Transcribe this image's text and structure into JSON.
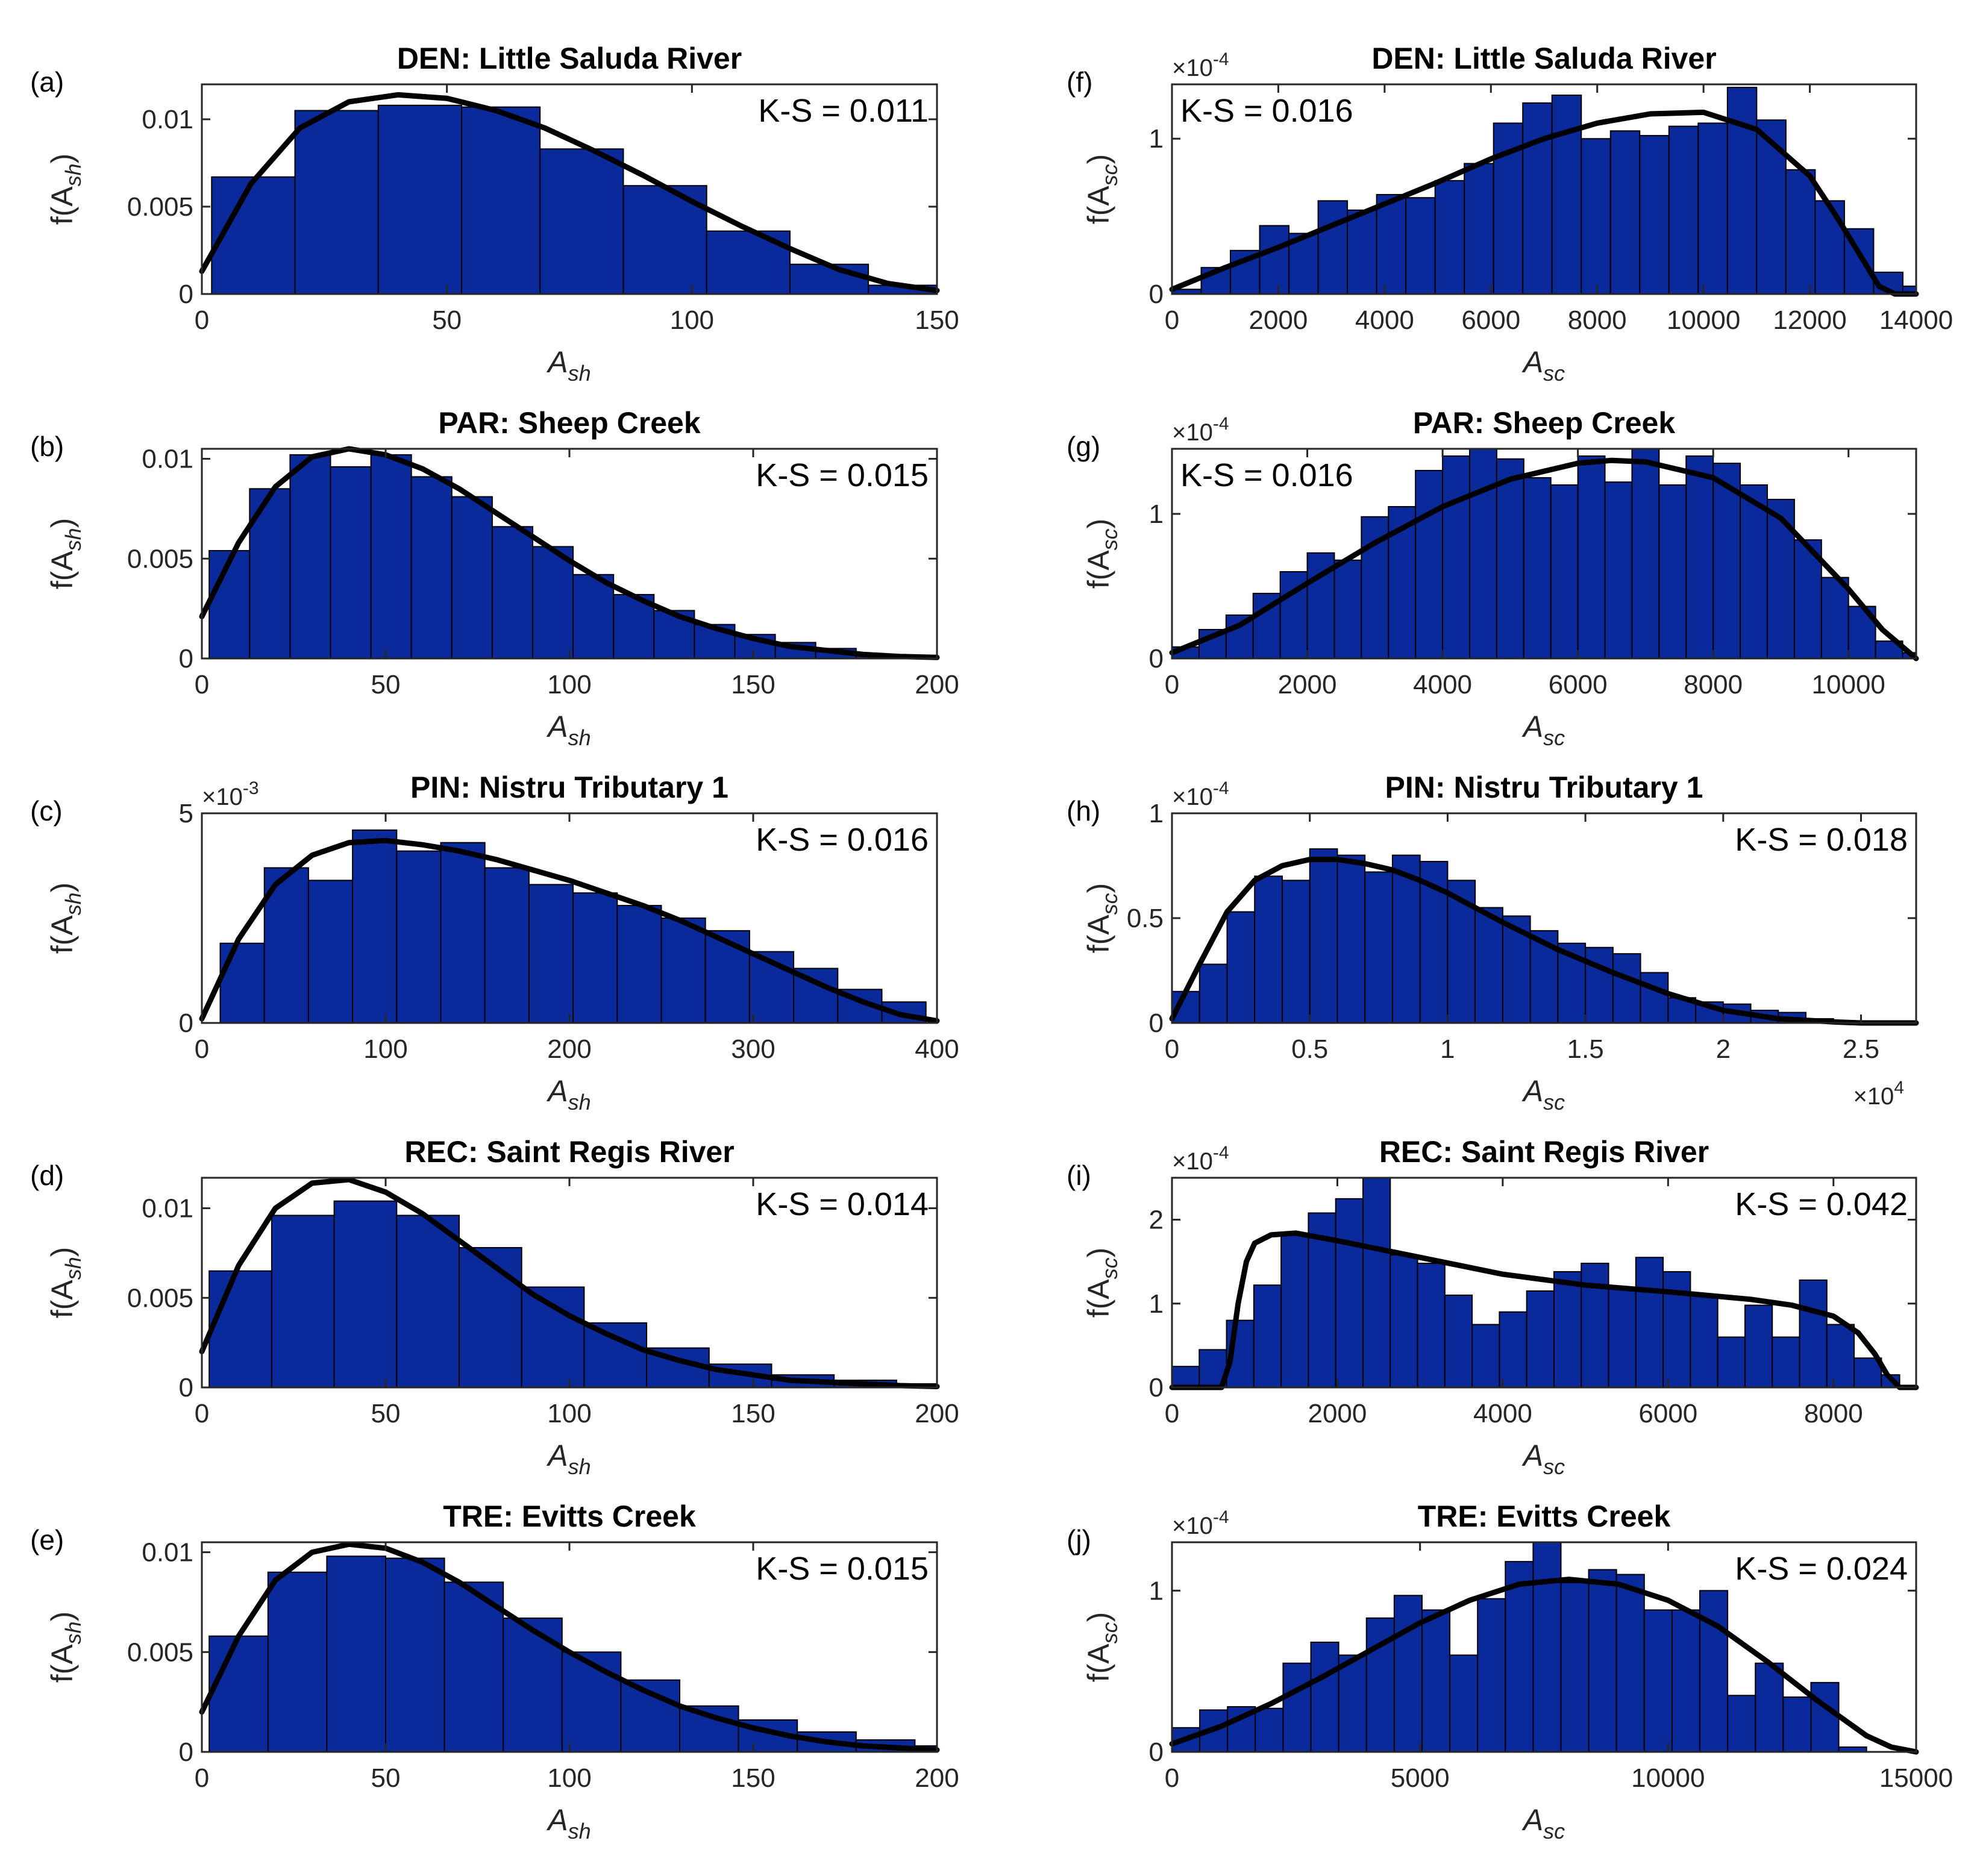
{
  "figure": {
    "style": {
      "bar_color": "#0a2a9c",
      "bar_edge": "#000000",
      "curve_color": "#000000"
    }
  },
  "chart_data": [
    {
      "id": "a",
      "type": "bar",
      "panel_label": "(a)",
      "title": "DEN: Little Saluda River",
      "ks": "K-S = 0.011",
      "xlabel": "A",
      "xlabel_sub": "sh",
      "ylabel_pre": "f(A",
      "ylabel_sub": "sh",
      "ylabel_post": ")",
      "xlim": [
        0,
        150
      ],
      "ylim": [
        0,
        0.012
      ],
      "xticks": [
        0,
        50,
        100,
        150
      ],
      "xticklabels": [
        "0",
        "50",
        "100",
        "150"
      ],
      "yticks": [
        0,
        0.005,
        0.01
      ],
      "yticklabels": [
        "0",
        "0.005",
        "0.01"
      ],
      "y_multiplier": null,
      "x_multiplier": null,
      "bin_edges": [
        2,
        19,
        36,
        53,
        69,
        86,
        103,
        120,
        136,
        150
      ],
      "values": [
        0.0067,
        0.0105,
        0.0108,
        0.0107,
        0.0083,
        0.0062,
        0.0036,
        0.0017,
        0.0005
      ],
      "fit_x": [
        0,
        10,
        20,
        30,
        40,
        50,
        60,
        70,
        80,
        90,
        100,
        110,
        120,
        130,
        140,
        150
      ],
      "fit_y": [
        0.0013,
        0.0063,
        0.0095,
        0.011,
        0.0114,
        0.0112,
        0.0105,
        0.0095,
        0.0082,
        0.0068,
        0.0053,
        0.0039,
        0.0026,
        0.0014,
        0.0006,
        0.0002
      ]
    },
    {
      "id": "b",
      "type": "bar",
      "panel_label": "(b)",
      "title": "PAR: Sheep Creek",
      "ks": "K-S = 0.015",
      "xlabel": "A",
      "xlabel_sub": "sh",
      "ylabel_pre": "f(A",
      "ylabel_sub": "sh",
      "ylabel_post": ")",
      "xlim": [
        0,
        200
      ],
      "ylim": [
        0,
        0.0105
      ],
      "xticks": [
        0,
        50,
        100,
        150,
        200
      ],
      "xticklabels": [
        "0",
        "50",
        "100",
        "150",
        "200"
      ],
      "yticks": [
        0,
        0.005,
        0.01
      ],
      "yticklabels": [
        "0",
        "0.005",
        "0.01"
      ],
      "y_multiplier": null,
      "x_multiplier": null,
      "bin_edges": [
        2,
        13,
        24,
        35,
        46,
        57,
        68,
        79,
        90,
        101,
        112,
        123,
        134,
        145,
        156,
        167,
        178,
        189,
        200
      ],
      "values": [
        0.0054,
        0.0085,
        0.0102,
        0.0096,
        0.0102,
        0.0091,
        0.0081,
        0.0066,
        0.0056,
        0.0042,
        0.0032,
        0.0024,
        0.0017,
        0.0012,
        0.0008,
        0.0005,
        0.0002,
        0.0001
      ],
      "fit_x": [
        0,
        10,
        20,
        30,
        40,
        50,
        60,
        70,
        80,
        90,
        100,
        110,
        120,
        130,
        140,
        150,
        160,
        170,
        180,
        190,
        200
      ],
      "fit_y": [
        0.0021,
        0.0058,
        0.0086,
        0.0101,
        0.0105,
        0.0102,
        0.0095,
        0.0085,
        0.0073,
        0.0061,
        0.0049,
        0.0038,
        0.0029,
        0.0021,
        0.0015,
        0.001,
        0.0006,
        0.0004,
        0.0002,
        0.0001,
        5e-05
      ]
    },
    {
      "id": "c",
      "type": "bar",
      "panel_label": "(c)",
      "title": "PIN: Nistru Tributary 1",
      "ks": "K-S = 0.016",
      "xlabel": "A",
      "xlabel_sub": "sh",
      "ylabel_pre": "f(A",
      "ylabel_sub": "sh",
      "ylabel_post": ")",
      "xlim": [
        0,
        400
      ],
      "ylim": [
        0,
        5
      ],
      "xticks": [
        0,
        100,
        200,
        300,
        400
      ],
      "xticklabels": [
        "0",
        "100",
        "200",
        "300",
        "400"
      ],
      "yticks": [
        0,
        5
      ],
      "yticklabels": [
        "0",
        "5"
      ],
      "y_multiplier": {
        "base": "×10",
        "exp": "-3"
      },
      "x_multiplier": null,
      "bin_edges": [
        10,
        34,
        58,
        82,
        106,
        130,
        154,
        178,
        202,
        226,
        250,
        274,
        298,
        322,
        346,
        370,
        394
      ],
      "values": [
        1.9,
        3.7,
        3.4,
        4.6,
        4.1,
        4.3,
        3.7,
        3.3,
        3.1,
        2.8,
        2.5,
        2.2,
        1.7,
        1.3,
        0.8,
        0.5,
        0.15
      ],
      "fit_x": [
        0,
        20,
        40,
        60,
        80,
        100,
        120,
        140,
        160,
        180,
        200,
        220,
        240,
        260,
        280,
        300,
        320,
        340,
        360,
        380,
        400
      ],
      "fit_y": [
        0.1,
        2.0,
        3.3,
        4.0,
        4.3,
        4.35,
        4.25,
        4.1,
        3.9,
        3.65,
        3.4,
        3.1,
        2.8,
        2.45,
        2.05,
        1.65,
        1.25,
        0.85,
        0.5,
        0.2,
        0.05
      ]
    },
    {
      "id": "d",
      "type": "bar",
      "panel_label": "(d)",
      "title": "REC: Saint Regis River",
      "ks": "K-S = 0.014",
      "xlabel": "A",
      "xlabel_sub": "sh",
      "ylabel_pre": "f(A",
      "ylabel_sub": "sh",
      "ylabel_post": ")",
      "xlim": [
        0,
        200
      ],
      "ylim": [
        0,
        0.0117
      ],
      "xticks": [
        0,
        50,
        100,
        150,
        200
      ],
      "xticklabels": [
        "0",
        "50",
        "100",
        "150",
        "200"
      ],
      "yticks": [
        0,
        0.005,
        0.01
      ],
      "yticklabels": [
        "0",
        "0.005",
        "0.01"
      ],
      "y_multiplier": null,
      "x_multiplier": null,
      "bin_edges": [
        2,
        19,
        36,
        53,
        70,
        87,
        104,
        121,
        138,
        155,
        172,
        189,
        200
      ],
      "values": [
        0.0065,
        0.0096,
        0.0104,
        0.0096,
        0.0078,
        0.0056,
        0.0036,
        0.0022,
        0.0013,
        0.0007,
        0.0004,
        0.0002
      ],
      "fit_x": [
        0,
        10,
        20,
        30,
        40,
        50,
        60,
        70,
        80,
        90,
        100,
        110,
        120,
        130,
        140,
        150,
        160,
        170,
        180,
        190,
        200
      ],
      "fit_y": [
        0.002,
        0.0068,
        0.01,
        0.0114,
        0.0116,
        0.0109,
        0.0097,
        0.0082,
        0.0067,
        0.0052,
        0.004,
        0.003,
        0.0021,
        0.0015,
        0.001,
        0.0007,
        0.0004,
        0.0003,
        0.0002,
        0.0001,
        5e-05
      ]
    },
    {
      "id": "e",
      "type": "bar",
      "panel_label": "(e)",
      "title": "TRE: Evitts Creek",
      "ks": "K-S = 0.015",
      "xlabel": "A",
      "xlabel_sub": "sh",
      "ylabel_pre": "f(A",
      "ylabel_sub": "sh",
      "ylabel_post": ")",
      "xlim": [
        0,
        200
      ],
      "ylim": [
        0,
        0.0105
      ],
      "xticks": [
        0,
        50,
        100,
        150,
        200
      ],
      "xticklabels": [
        "0",
        "50",
        "100",
        "150",
        "200"
      ],
      "yticks": [
        0,
        0.005,
        0.01
      ],
      "yticklabels": [
        "0",
        "0.005",
        "0.01"
      ],
      "y_multiplier": null,
      "x_multiplier": null,
      "bin_edges": [
        2,
        18,
        34,
        50,
        66,
        82,
        98,
        114,
        130,
        146,
        162,
        178,
        194,
        200
      ],
      "values": [
        0.0058,
        0.009,
        0.0098,
        0.0097,
        0.0085,
        0.0067,
        0.005,
        0.0036,
        0.0023,
        0.0016,
        0.001,
        0.0006,
        0.0003
      ],
      "fit_x": [
        0,
        10,
        20,
        30,
        40,
        50,
        60,
        70,
        80,
        90,
        100,
        110,
        120,
        130,
        140,
        150,
        160,
        170,
        180,
        190,
        200
      ],
      "fit_y": [
        0.002,
        0.0058,
        0.0086,
        0.01,
        0.0104,
        0.0102,
        0.0095,
        0.0085,
        0.0073,
        0.0061,
        0.005,
        0.004,
        0.0031,
        0.0023,
        0.0017,
        0.0012,
        0.0008,
        0.0005,
        0.0003,
        0.0002,
        0.0001
      ]
    },
    {
      "id": "f",
      "type": "bar",
      "panel_label": "(f)",
      "title": "DEN: Little Saluda River",
      "ks": "K-S = 0.016",
      "xlabel": "A",
      "xlabel_sub": "sc",
      "ylabel_pre": "f(A",
      "ylabel_sub": "sc",
      "ylabel_post": ")",
      "xlim": [
        0,
        14000
      ],
      "ylim": [
        0,
        1.35
      ],
      "xticks": [
        0,
        2000,
        4000,
        6000,
        8000,
        10000,
        12000,
        14000
      ],
      "xticklabels": [
        "0",
        "2000",
        "4000",
        "6000",
        "8000",
        "10000",
        "12000",
        "14000"
      ],
      "yticks": [
        0,
        1
      ],
      "yticklabels": [
        "0",
        "1"
      ],
      "y_multiplier": {
        "base": "×10",
        "exp": "-4"
      },
      "x_multiplier": null,
      "bin_edges": [
        0,
        550,
        1100,
        1650,
        2200,
        2750,
        3300,
        3850,
        4400,
        4950,
        5500,
        6050,
        6600,
        7150,
        7700,
        8250,
        8800,
        9350,
        9900,
        10450,
        11000,
        11550,
        12100,
        12650,
        13200,
        13750,
        14000
      ],
      "values": [
        0.03,
        0.17,
        0.28,
        0.44,
        0.39,
        0.6,
        0.54,
        0.64,
        0.62,
        0.73,
        0.84,
        1.1,
        1.23,
        1.28,
        1.0,
        1.05,
        1.02,
        1.08,
        1.1,
        1.33,
        1.12,
        0.8,
        0.6,
        0.42,
        0.14,
        0.05
      ],
      "fit_x": [
        0,
        1000,
        2000,
        3000,
        4000,
        5000,
        6000,
        7000,
        8000,
        9000,
        10000,
        11000,
        12000,
        12500,
        13000,
        13300,
        13600,
        14000
      ],
      "fit_y": [
        0.03,
        0.17,
        0.3,
        0.44,
        0.58,
        0.72,
        0.87,
        1.0,
        1.1,
        1.16,
        1.17,
        1.06,
        0.76,
        0.5,
        0.22,
        0.05,
        0.0,
        0.0
      ]
    },
    {
      "id": "g",
      "type": "bar",
      "panel_label": "(g)",
      "title": "PAR: Sheep Creek",
      "ks": "K-S = 0.016",
      "xlabel": "A",
      "xlabel_sub": "sc",
      "ylabel_pre": "f(A",
      "ylabel_sub": "sc",
      "ylabel_post": ")",
      "xlim": [
        0,
        11000
      ],
      "ylim": [
        0,
        1.45
      ],
      "xticks": [
        0,
        2000,
        4000,
        6000,
        8000,
        10000
      ],
      "xticklabels": [
        "0",
        "2000",
        "4000",
        "6000",
        "8000",
        "10000"
      ],
      "yticks": [
        0,
        1
      ],
      "yticklabels": [
        "0",
        "1"
      ],
      "y_multiplier": {
        "base": "×10",
        "exp": "-4"
      },
      "x_multiplier": null,
      "bin_edges": [
        0,
        400,
        800,
        1200,
        1600,
        2000,
        2400,
        2800,
        3200,
        3600,
        4000,
        4400,
        4800,
        5200,
        5600,
        6000,
        6400,
        6800,
        7200,
        7600,
        8000,
        8400,
        8800,
        9200,
        9600,
        10000,
        10400,
        10800,
        11000
      ],
      "values": [
        0.08,
        0.2,
        0.3,
        0.45,
        0.6,
        0.73,
        0.68,
        0.98,
        1.05,
        1.3,
        1.4,
        1.45,
        1.38,
        1.25,
        1.2,
        1.4,
        1.22,
        1.45,
        1.2,
        1.4,
        1.35,
        1.2,
        1.1,
        0.82,
        0.56,
        0.36,
        0.12,
        0.04
      ],
      "fit_x": [
        0,
        1000,
        2000,
        3000,
        4000,
        5000,
        6000,
        6500,
        7000,
        8000,
        9000,
        10000,
        10500,
        11000
      ],
      "fit_y": [
        0.04,
        0.23,
        0.52,
        0.8,
        1.05,
        1.24,
        1.35,
        1.37,
        1.36,
        1.25,
        0.97,
        0.48,
        0.2,
        0.0
      ]
    },
    {
      "id": "h",
      "type": "bar",
      "panel_label": "(h)",
      "title": "PIN: Nistru Tributary 1",
      "ks": "K-S = 0.018",
      "xlabel": "A",
      "xlabel_sub": "sc",
      "ylabel_pre": "f(A",
      "ylabel_sub": "sc",
      "ylabel_post": ")",
      "xlim": [
        0,
        2.7
      ],
      "ylim": [
        0,
        1.0
      ],
      "xticks": [
        0,
        0.5,
        1,
        1.5,
        2,
        2.5
      ],
      "xticklabels": [
        "0",
        "0.5",
        "1",
        "1.5",
        "2",
        "2.5"
      ],
      "yticks": [
        0,
        0.5,
        1
      ],
      "yticklabels": [
        "0",
        "0.5",
        "1"
      ],
      "y_multiplier": {
        "base": "×10",
        "exp": "-4"
      },
      "x_multiplier": {
        "base": "×10",
        "exp": "4"
      },
      "bin_edges": [
        0,
        0.1,
        0.2,
        0.3,
        0.4,
        0.5,
        0.6,
        0.7,
        0.8,
        0.9,
        1.0,
        1.1,
        1.2,
        1.3,
        1.4,
        1.5,
        1.6,
        1.7,
        1.8,
        1.9,
        2.0,
        2.1,
        2.2,
        2.3,
        2.4
      ],
      "values": [
        0.15,
        0.28,
        0.53,
        0.7,
        0.68,
        0.83,
        0.8,
        0.72,
        0.8,
        0.77,
        0.68,
        0.55,
        0.51,
        0.44,
        0.38,
        0.36,
        0.33,
        0.24,
        0.12,
        0.1,
        0.09,
        0.06,
        0.05,
        0.02
      ],
      "fit_x": [
        0,
        0.1,
        0.2,
        0.3,
        0.4,
        0.5,
        0.6,
        0.7,
        0.8,
        0.9,
        1.0,
        1.2,
        1.4,
        1.6,
        1.8,
        2.0,
        2.2,
        2.4,
        2.5,
        2.7
      ],
      "fit_y": [
        0.02,
        0.28,
        0.53,
        0.68,
        0.75,
        0.78,
        0.78,
        0.76,
        0.73,
        0.68,
        0.62,
        0.48,
        0.35,
        0.24,
        0.14,
        0.06,
        0.02,
        0.005,
        0.0,
        0.0
      ]
    },
    {
      "id": "i",
      "type": "bar",
      "panel_label": "(i)",
      "title": "REC: Saint Regis River",
      "ks": "K-S = 0.042",
      "xlabel": "A",
      "xlabel_sub": "sc",
      "ylabel_pre": "f(A",
      "ylabel_sub": "sc",
      "ylabel_post": ")",
      "xlim": [
        0,
        9000
      ],
      "ylim": [
        0,
        2.5
      ],
      "xticks": [
        0,
        2000,
        4000,
        6000,
        8000
      ],
      "xticklabels": [
        "0",
        "2000",
        "4000",
        "6000",
        "8000"
      ],
      "yticks": [
        0,
        1,
        2
      ],
      "yticklabels": [
        "0",
        "1",
        "2"
      ],
      "y_multiplier": {
        "base": "×10",
        "exp": "-4"
      },
      "x_multiplier": null,
      "bin_edges": [
        0,
        330,
        660,
        990,
        1320,
        1650,
        1980,
        2310,
        2640,
        2970,
        3300,
        3630,
        3960,
        4290,
        4620,
        4950,
        5280,
        5610,
        5940,
        6270,
        6600,
        6930,
        7260,
        7590,
        7920,
        8250,
        8580,
        8800
      ],
      "values": [
        0.25,
        0.45,
        0.8,
        1.22,
        1.82,
        2.08,
        2.25,
        2.5,
        1.58,
        1.48,
        1.1,
        0.75,
        0.9,
        1.15,
        1.38,
        1.48,
        1.18,
        1.55,
        1.38,
        1.1,
        0.6,
        0.98,
        0.6,
        1.28,
        0.75,
        0.35,
        0.15
      ],
      "fit_x": [
        0,
        600,
        700,
        800,
        900,
        1000,
        1200,
        1500,
        2000,
        3000,
        4000,
        5000,
        6000,
        7000,
        7500,
        8000,
        8300,
        8500,
        8650,
        8800,
        9000
      ],
      "fit_y": [
        0,
        0,
        0.3,
        1.0,
        1.5,
        1.72,
        1.82,
        1.84,
        1.75,
        1.55,
        1.35,
        1.22,
        1.14,
        1.05,
        0.98,
        0.85,
        0.65,
        0.4,
        0.15,
        0,
        0
      ]
    },
    {
      "id": "j",
      "type": "bar",
      "panel_label": "(j)",
      "title": "TRE: Evitts Creek",
      "ks": "K-S = 0.024",
      "xlabel": "A",
      "xlabel_sub": "sc",
      "ylabel_pre": "f(A",
      "ylabel_sub": "sc",
      "ylabel_post": ")",
      "xlim": [
        0,
        15000
      ],
      "ylim": [
        0,
        1.3
      ],
      "xticks": [
        0,
        5000,
        10000,
        15000
      ],
      "xticklabels": [
        "0",
        "5000",
        "10000",
        "15000"
      ],
      "yticks": [
        0,
        1
      ],
      "yticklabels": [
        "0",
        "1"
      ],
      "y_multiplier": {
        "base": "×10",
        "exp": "-4"
      },
      "x_multiplier": null,
      "bin_edges": [
        0,
        560,
        1120,
        1680,
        2240,
        2800,
        3360,
        3920,
        4480,
        5040,
        5600,
        6160,
        6720,
        7280,
        7840,
        8400,
        8960,
        9520,
        10080,
        10640,
        11200,
        11760,
        12320,
        12880,
        13440,
        14000,
        14560
      ],
      "values": [
        0.15,
        0.26,
        0.28,
        0.27,
        0.55,
        0.68,
        0.6,
        0.83,
        0.97,
        0.88,
        0.6,
        0.95,
        1.18,
        1.3,
        1.05,
        1.13,
        1.1,
        0.88,
        0.88,
        1.0,
        0.35,
        0.55,
        0.34,
        0.43,
        0.03,
        0.0
      ],
      "fit_x": [
        0,
        1000,
        2000,
        3000,
        4000,
        5000,
        6000,
        7000,
        8000,
        9000,
        10000,
        11000,
        12000,
        13000,
        14000,
        14500,
        15000
      ],
      "fit_y": [
        0.05,
        0.16,
        0.3,
        0.46,
        0.63,
        0.8,
        0.94,
        1.04,
        1.07,
        1.04,
        0.94,
        0.78,
        0.56,
        0.32,
        0.1,
        0.03,
        0.0
      ]
    }
  ]
}
